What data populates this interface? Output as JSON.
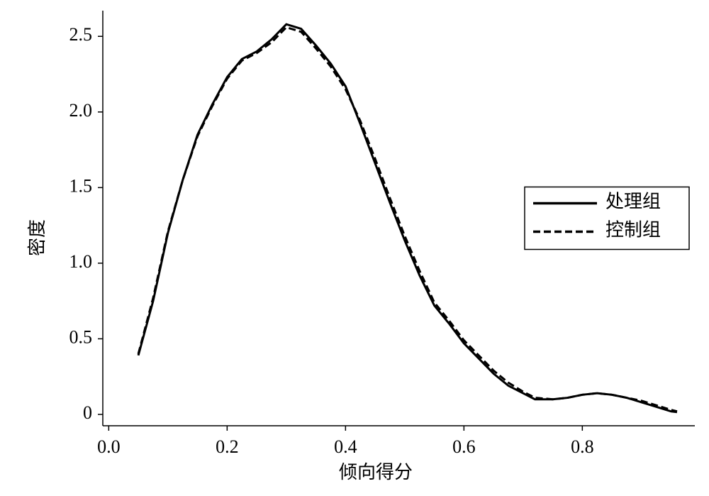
{
  "chart_data": {
    "type": "line",
    "xlabel": "倾向得分",
    "ylabel": "密度",
    "x": [
      0.05,
      0.075,
      0.1,
      0.125,
      0.15,
      0.175,
      0.2,
      0.225,
      0.25,
      0.275,
      0.3,
      0.325,
      0.35,
      0.375,
      0.4,
      0.425,
      0.45,
      0.475,
      0.5,
      0.525,
      0.55,
      0.575,
      0.6,
      0.625,
      0.65,
      0.675,
      0.7,
      0.72,
      0.75,
      0.775,
      0.8,
      0.825,
      0.85,
      0.875,
      0.9,
      0.925,
      0.95,
      0.96
    ],
    "series": [
      {
        "name": "处理组",
        "color": "#000000",
        "linestyle": "solid",
        "values": [
          0.39,
          0.75,
          1.2,
          1.55,
          1.85,
          2.05,
          2.23,
          2.35,
          2.4,
          2.48,
          2.58,
          2.55,
          2.44,
          2.32,
          2.17,
          1.92,
          1.66,
          1.4,
          1.15,
          0.92,
          0.72,
          0.6,
          0.47,
          0.37,
          0.27,
          0.19,
          0.14,
          0.1,
          0.1,
          0.11,
          0.13,
          0.14,
          0.13,
          0.11,
          0.08,
          0.05,
          0.02,
          0.015
        ]
      },
      {
        "name": "控制组",
        "color": "#000000",
        "linestyle": "dashed",
        "values": [
          0.4,
          0.77,
          1.21,
          1.55,
          1.84,
          2.04,
          2.22,
          2.34,
          2.39,
          2.46,
          2.56,
          2.53,
          2.42,
          2.3,
          2.15,
          1.94,
          1.69,
          1.43,
          1.18,
          0.95,
          0.74,
          0.62,
          0.49,
          0.39,
          0.29,
          0.21,
          0.15,
          0.11,
          0.1,
          0.11,
          0.13,
          0.14,
          0.13,
          0.11,
          0.09,
          0.06,
          0.03,
          0.02
        ]
      }
    ],
    "xlim": [
      -0.01,
      0.99
    ],
    "ylim": [
      -0.075,
      2.67
    ],
    "xticks": [
      {
        "value": 0,
        "label": "0.0"
      },
      0.2,
      0.4,
      0.6,
      0.8
    ],
    "yticks": [
      0,
      0.5,
      {
        "value": 1,
        "label": "1.0"
      },
      1.5,
      {
        "value": 2,
        "label": "2.0"
      },
      2.5
    ],
    "legend": "center right"
  }
}
